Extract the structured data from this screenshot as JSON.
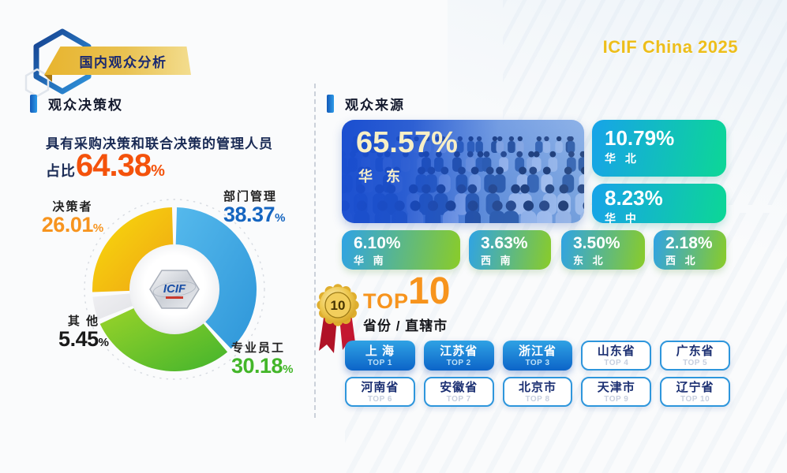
{
  "page": {
    "brand": "ICIF China 2025",
    "badge_title": "国内观众分析"
  },
  "left_panel": {
    "section_title": "观众决策权",
    "summary_line": "具有采购决策和联合决策的管理人员",
    "ratio_prefix": "占比",
    "ratio_value": "64.38",
    "ratio_unit": "%",
    "donut_labels": [
      {
        "name": "决策者",
        "value": "26.01",
        "unit": "%"
      },
      {
        "name": "部门管理",
        "value": "38.37",
        "unit": "%"
      },
      {
        "name": "其 他",
        "value": "5.45",
        "unit": "%"
      },
      {
        "name": "专业员工",
        "value": "30.18",
        "unit": "%"
      }
    ],
    "center_logo_text": "ICIF"
  },
  "right_panel": {
    "section_title": "观众来源",
    "regions": [
      {
        "name": "华 东",
        "value": "65.57%"
      },
      {
        "name": "华 北",
        "value": "10.79%"
      },
      {
        "name": "华 中",
        "value": "8.23%"
      },
      {
        "name": "华 南",
        "value": "6.10%"
      },
      {
        "name": "西 南",
        "value": "3.63%"
      },
      {
        "name": "东 北",
        "value": "3.50%"
      },
      {
        "name": "西 北",
        "value": "2.18%"
      }
    ],
    "top10": {
      "medal_number": "10",
      "label_top": "TOP",
      "label_number": "10",
      "subtitle": "省份 / 直辖市",
      "provinces": [
        {
          "name": "上 海",
          "rank": "TOP 1"
        },
        {
          "name": "江苏省",
          "rank": "TOP 2"
        },
        {
          "name": "浙江省",
          "rank": "TOP 3"
        },
        {
          "name": "山东省",
          "rank": "TOP 4"
        },
        {
          "name": "广东省",
          "rank": "TOP 5"
        },
        {
          "name": "河南省",
          "rank": "TOP 6"
        },
        {
          "name": "安徽省",
          "rank": "TOP 7"
        },
        {
          "name": "北京市",
          "rank": "TOP 8"
        },
        {
          "name": "天津市",
          "rank": "TOP 9"
        },
        {
          "name": "辽宁省",
          "rank": "TOP 10"
        }
      ]
    }
  },
  "colors": {
    "ratio_orange": "#F4520B",
    "label_orange": "#F7941E",
    "label_blue": "#1565C0",
    "label_green": "#43B629",
    "label_dark": "#1A1A1A",
    "brand_gold": "#EDBE1B",
    "header_bar_blue": "#1259B8",
    "province_highlight_blue": "#0C64C8",
    "region_gradient_blue": "#17A3E9",
    "region_gradient_green": "#0CD796"
  },
  "chart_data": [
    {
      "type": "pie",
      "title": "观众决策权",
      "subtitle": "具有采购决策和联合决策的管理人员占比64.38%",
      "donut": true,
      "start_angle_deg": -90,
      "direction": "clockwise",
      "labels": [
        "部门管理",
        "专业员工",
        "其 他",
        "决策者"
      ],
      "values": [
        38.37,
        30.18,
        5.45,
        26.01
      ],
      "segment_gradients": [
        [
          "#55B9EC",
          "#2E96D9"
        ],
        [
          "#9AD32A",
          "#43B42C"
        ],
        [
          "#EFEFF2",
          "#E2E3E7"
        ],
        [
          "#F8DC0C",
          "#EFA414"
        ]
      ],
      "center_logo": "ICIF"
    },
    {
      "type": "bar",
      "title": "观众来源",
      "categories": [
        "华 东",
        "华 北",
        "华 中",
        "华 南",
        "西 南",
        "东 北",
        "西 北"
      ],
      "values": [
        65.57,
        10.79,
        8.23,
        6.1,
        3.63,
        3.5,
        2.18
      ],
      "unit": "%"
    },
    {
      "type": "table",
      "title": "TOP 10 省份 / 直辖市",
      "ranking": [
        "上 海",
        "江苏省",
        "浙江省",
        "山东省",
        "广东省",
        "河南省",
        "安徽省",
        "北京市",
        "天津市",
        "辽宁省"
      ]
    }
  ]
}
